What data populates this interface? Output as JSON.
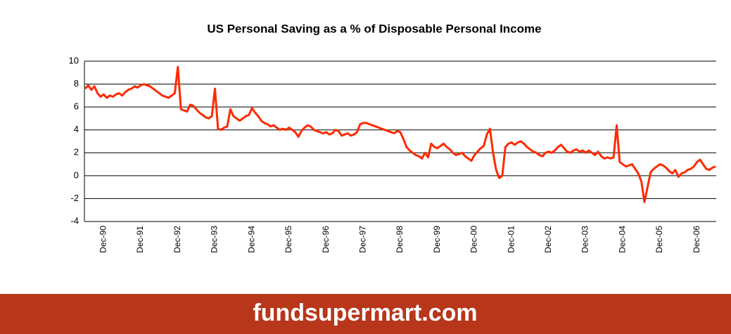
{
  "chart_data": {
    "type": "line",
    "title": "US Personal Saving as a % of Disposable Personal Income",
    "footer": "fundsupermart.com",
    "categories": [
      null,
      null,
      null,
      null,
      null,
      null,
      "Dec-90",
      null,
      null,
      null,
      null,
      null,
      null,
      null,
      null,
      null,
      null,
      null,
      "Dec-91",
      null,
      null,
      null,
      null,
      null,
      null,
      null,
      null,
      null,
      null,
      null,
      "Dec-92",
      null,
      null,
      null,
      null,
      null,
      null,
      null,
      null,
      null,
      null,
      null,
      "Dec-93",
      null,
      null,
      null,
      null,
      null,
      null,
      null,
      null,
      null,
      null,
      null,
      "Dec-94",
      null,
      null,
      null,
      null,
      null,
      null,
      null,
      null,
      null,
      null,
      null,
      "Dec-95",
      null,
      null,
      null,
      null,
      null,
      null,
      null,
      null,
      null,
      null,
      null,
      "Dec-96",
      null,
      null,
      null,
      null,
      null,
      null,
      null,
      null,
      null,
      null,
      null,
      "Dec-97",
      null,
      null,
      null,
      null,
      null,
      null,
      null,
      null,
      null,
      null,
      null,
      "Dec-98",
      null,
      null,
      null,
      null,
      null,
      null,
      null,
      null,
      null,
      null,
      null,
      "Dec-99",
      null,
      null,
      null,
      null,
      null,
      null,
      null,
      null,
      null,
      null,
      null,
      "Dec-00",
      null,
      null,
      null,
      null,
      null,
      null,
      null,
      null,
      null,
      null,
      null,
      "Dec-01",
      null,
      null,
      null,
      null,
      null,
      null,
      null,
      null,
      null,
      null,
      null,
      "Dec-02",
      null,
      null,
      null,
      null,
      null,
      null,
      null,
      null,
      null,
      null,
      null,
      "Dec-03",
      null,
      null,
      null,
      null,
      null,
      null,
      null,
      null,
      null,
      null,
      null,
      "Dec-04",
      null,
      null,
      null,
      null,
      null,
      null,
      null,
      null,
      null,
      null,
      null,
      "Dec-05",
      null,
      null,
      null,
      null,
      null,
      null,
      null,
      null,
      null,
      null,
      null,
      "Dec-06",
      null,
      null,
      null,
      null,
      null,
      null
    ],
    "values": [
      7.6,
      7.9,
      7.5,
      7.8,
      7.2,
      6.9,
      7.1,
      6.8,
      7.0,
      6.9,
      7.1,
      7.2,
      7.0,
      7.3,
      7.5,
      7.6,
      7.8,
      7.7,
      7.9,
      8.0,
      7.9,
      7.8,
      7.6,
      7.4,
      7.2,
      7.0,
      6.9,
      6.8,
      7.0,
      7.2,
      9.5,
      5.8,
      5.7,
      5.6,
      6.2,
      6.1,
      5.8,
      5.5,
      5.3,
      5.1,
      5.0,
      5.2,
      7.6,
      4.1,
      4.0,
      4.2,
      4.3,
      5.8,
      5.2,
      5.0,
      4.8,
      5.0,
      5.2,
      5.3,
      5.9,
      5.5,
      5.2,
      4.8,
      4.6,
      4.5,
      4.3,
      4.4,
      4.2,
      4.0,
      4.1,
      4.0,
      4.2,
      4.0,
      3.8,
      3.4,
      3.9,
      4.2,
      4.4,
      4.3,
      4.0,
      3.9,
      3.8,
      3.7,
      3.8,
      3.6,
      3.7,
      4.0,
      3.9,
      3.5,
      3.6,
      3.7,
      3.5,
      3.6,
      3.8,
      4.5,
      4.6,
      4.6,
      4.5,
      4.4,
      4.3,
      4.2,
      4.1,
      4.0,
      3.9,
      3.8,
      3.7,
      3.9,
      3.8,
      3.2,
      2.5,
      2.2,
      2.0,
      1.8,
      1.7,
      1.5,
      2.0,
      1.6,
      2.8,
      2.5,
      2.4,
      2.6,
      2.8,
      2.5,
      2.3,
      2.0,
      1.8,
      1.9,
      2.0,
      1.7,
      1.5,
      1.3,
      1.8,
      2.1,
      2.4,
      2.6,
      3.6,
      4.1,
      2.0,
      0.5,
      -0.2,
      0.0,
      2.5,
      2.8,
      2.9,
      2.7,
      2.9,
      3.0,
      2.8,
      2.5,
      2.3,
      2.1,
      2.0,
      1.8,
      1.7,
      2.0,
      2.1,
      2.0,
      2.2,
      2.5,
      2.7,
      2.4,
      2.1,
      2.0,
      2.2,
      2.3,
      2.1,
      2.2,
      2.0,
      2.2,
      2.0,
      1.8,
      2.1,
      1.7,
      1.5,
      1.6,
      1.5,
      1.6,
      4.4,
      1.2,
      1.0,
      0.8,
      0.9,
      1.0,
      0.6,
      0.2,
      -0.5,
      -2.3,
      -1.0,
      0.3,
      0.6,
      0.8,
      1.0,
      0.9,
      0.7,
      0.4,
      0.2,
      0.5,
      -0.1,
      0.2,
      0.3,
      0.5,
      0.6,
      0.8,
      1.2,
      1.4,
      1.0,
      0.6,
      0.5,
      0.7,
      0.8
    ],
    "color": "#ff2a00",
    "ylim": [
      -4,
      10
    ],
    "yticks": [
      -4,
      -2,
      0,
      2,
      4,
      6,
      8,
      10
    ],
    "grid": true
  }
}
